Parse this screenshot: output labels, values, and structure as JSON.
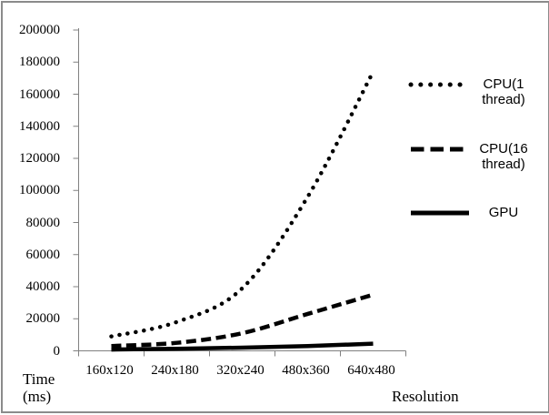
{
  "figure": {
    "background": "#ffffff",
    "border_color": "#8b8b8b"
  },
  "colors": {
    "axis": "#808080",
    "series": "#000000",
    "text": "#000000"
  },
  "axis_titles": {
    "y_line1": "Time",
    "y_line2": "(ms)",
    "x": "Resolution"
  },
  "legend": {
    "position": "right",
    "items": [
      {
        "label": "CPU(1 thread)"
      },
      {
        "label": "CPU(16 thread)"
      },
      {
        "label": "GPU"
      }
    ]
  },
  "chart_data": {
    "type": "line",
    "title": "",
    "xlabel": "Resolution",
    "ylabel": "Time (ms)",
    "categories": [
      "160x120",
      "240x180",
      "320x240",
      "480x360",
      "640x480"
    ],
    "series": [
      {
        "name": "CPU(1 thread)",
        "dash_style": "dotted",
        "color": "#000000",
        "values": [
          9000,
          18000,
          39000,
          96000,
          174000
        ]
      },
      {
        "name": "CPU(16 thread)",
        "dash_style": "dashed",
        "color": "#000000",
        "values": [
          3000,
          5000,
          11000,
          23000,
          35000
        ]
      },
      {
        "name": "GPU",
        "dash_style": "solid",
        "color": "#000000",
        "values": [
          800,
          1300,
          2000,
          3000,
          4500
        ]
      }
    ],
    "ylim": [
      0,
      200000
    ],
    "ytick_step": 20000,
    "yticks": [
      0,
      20000,
      40000,
      60000,
      80000,
      100000,
      120000,
      140000,
      160000,
      180000,
      200000
    ],
    "grid": false,
    "line_smoothing": true,
    "legend_position": "right"
  }
}
